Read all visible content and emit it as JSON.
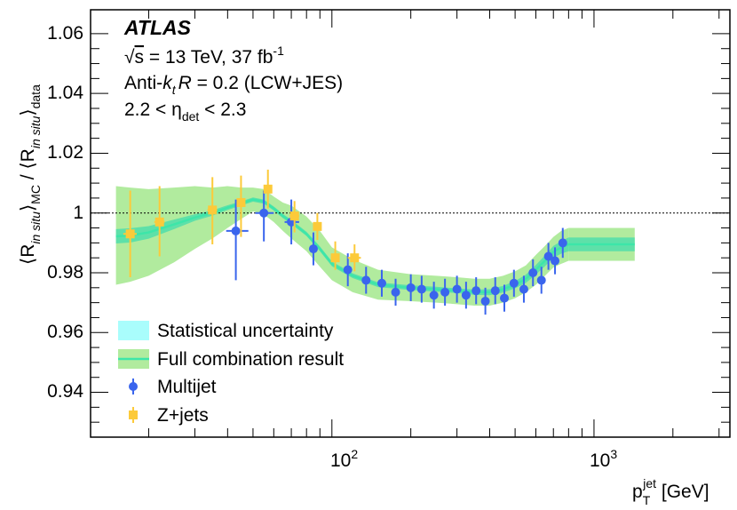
{
  "chart_data": {
    "type": "scatter",
    "x_scale": "log",
    "xlim": [
      12,
      3300
    ],
    "ylim": [
      0.925,
      1.068
    ],
    "reference_line": 1.0,
    "grid": false,
    "legend_position": "bottom-left",
    "header": {
      "experiment": "ATLAS",
      "sqrt_symbol": "√",
      "energy_s": "s",
      "energy_text": " = 13 TeV, 37 fb",
      "energy_sup": "-1",
      "jet_pre": "Anti-",
      "jet_k": "k",
      "jet_t": "t",
      "jet_R": "R",
      "jet_post": " = 0.2 (LCW+JES)",
      "eta_pre": "2.2 < η",
      "eta_sub": "det",
      "eta_post": " < 2.3"
    },
    "ylabel": {
      "bracket_open": "⟨",
      "bracket_close": "⟩",
      "R": "R",
      "insitu": "in situ",
      "mc": "MC",
      "slash": " / ",
      "data": "data"
    },
    "xlabel": {
      "p": "p",
      "T": "T",
      "jet": "jet",
      "unit": " [GeV]"
    },
    "x_ticks_labeled": [
      {
        "value": 100,
        "base": "10",
        "exp": "2"
      },
      {
        "value": 1000,
        "base": "10",
        "exp": "3"
      }
    ],
    "y_ticks": [
      {
        "value": 0.94,
        "label": "0.94"
      },
      {
        "value": 0.96,
        "label": "0.96"
      },
      {
        "value": 0.98,
        "label": "0.98"
      },
      {
        "value": 1.0,
        "label": "1"
      },
      {
        "value": 1.02,
        "label": "1.02"
      },
      {
        "value": 1.04,
        "label": "1.04"
      },
      {
        "value": 1.06,
        "label": "1.06"
      }
    ],
    "legend": [
      {
        "label": "Statistical uncertainty",
        "kind": "stat-box"
      },
      {
        "label": "Full combination result",
        "kind": "full-band"
      },
      {
        "label": "Multijet",
        "kind": "multijet"
      },
      {
        "label": "Z+jets",
        "kind": "zjets"
      }
    ],
    "colors": {
      "full_band": "#b1eb9e",
      "stat_band": "#5ee0a9",
      "central_line": "#3de6a9",
      "legend_stat_box": "#a9fdfc",
      "multijet": "#3a65ed",
      "zjets": "#fcca3a",
      "reference_line": "#000000"
    },
    "combination": {
      "x": [
        15,
        17,
        20,
        25,
        30,
        35,
        40,
        45,
        50,
        55,
        60,
        65,
        70,
        80,
        90,
        100,
        120,
        150,
        200,
        250,
        300,
        350,
        400,
        450,
        500,
        550,
        600,
        650,
        700,
        750,
        800
      ],
      "central": [
        0.9922,
        0.9925,
        0.9935,
        0.9962,
        0.9985,
        1.0,
        1.0018,
        1.0032,
        1.0045,
        1.0038,
        1.0015,
        0.999,
        0.997,
        0.993,
        0.988,
        0.983,
        0.979,
        0.976,
        0.975,
        0.9745,
        0.974,
        0.9735,
        0.9735,
        0.9745,
        0.976,
        0.978,
        0.981,
        0.984,
        0.987,
        0.9885,
        0.9895
      ],
      "stat_lo": [
        0.9898,
        0.9901,
        0.9914,
        0.9946,
        0.9974,
        0.9991,
        1.001,
        1.0025,
        1.0038,
        1.0031,
        1.0008,
        0.9983,
        0.9963,
        0.9923,
        0.9872,
        0.9822,
        0.9782,
        0.9752,
        0.9742,
        0.9737,
        0.9732,
        0.9726,
        0.9725,
        0.9734,
        0.9748,
        0.9766,
        0.9794,
        0.9822,
        0.985,
        0.9864,
        0.9872
      ],
      "stat_hi": [
        0.9946,
        0.9949,
        0.9956,
        0.9978,
        0.9996,
        1.0009,
        1.0026,
        1.0039,
        1.0052,
        1.0045,
        1.0022,
        0.9997,
        0.9977,
        0.9937,
        0.9888,
        0.9838,
        0.9798,
        0.9768,
        0.9758,
        0.9753,
        0.9748,
        0.9744,
        0.9745,
        0.9756,
        0.9772,
        0.9794,
        0.9826,
        0.9858,
        0.989,
        0.9906,
        0.9918
      ],
      "full_lo": [
        0.976,
        0.977,
        0.979,
        0.9835,
        0.988,
        0.9915,
        0.995,
        0.998,
        1.0005,
        0.9995,
        0.997,
        0.994,
        0.9915,
        0.9872,
        0.982,
        0.9775,
        0.9735,
        0.971,
        0.9705,
        0.97,
        0.9695,
        0.969,
        0.969,
        0.97,
        0.9715,
        0.9735,
        0.976,
        0.979,
        0.9818,
        0.983,
        0.984
      ],
      "full_hi": [
        1.009,
        1.0085,
        1.008,
        1.0085,
        1.009,
        1.0085,
        1.009,
        1.0085,
        1.0085,
        1.008,
        1.0055,
        1.0035,
        1.0025,
        0.9988,
        0.994,
        0.9885,
        0.9845,
        0.981,
        0.9795,
        0.979,
        0.9785,
        0.978,
        0.978,
        0.979,
        0.9805,
        0.9825,
        0.986,
        0.989,
        0.992,
        0.994,
        0.995
      ]
    },
    "combination_extension": {
      "x_start": 800,
      "x_end": 1430,
      "central": 0.9895,
      "stat_lo": 0.9872,
      "stat_hi": 0.9918,
      "full_lo": 0.984,
      "full_hi": 0.995
    },
    "multijet": [
      {
        "x": 43,
        "y": 0.994,
        "ylo": 0.9775,
        "yhi": 1.0045,
        "xlo": 39.5,
        "xhi": 48
      },
      {
        "x": 55,
        "y": 1.0,
        "ylo": 0.9905,
        "yhi": 1.0075,
        "xlo": 51,
        "xhi": 60
      },
      {
        "x": 70,
        "y": 0.997,
        "ylo": 0.9895,
        "yhi": 1.0045,
        "xlo": 66,
        "xhi": 75
      },
      {
        "x": 85,
        "y": 0.988,
        "ylo": 0.9825,
        "yhi": 0.9935,
        "xlo": 82,
        "xhi": 88
      },
      {
        "x": 115,
        "y": 0.981,
        "ylo": 0.9755,
        "yhi": 0.9865,
        "xlo": 112,
        "xhi": 119
      },
      {
        "x": 135,
        "y": 0.9775,
        "ylo": 0.973,
        "yhi": 0.982,
        "xlo": 132,
        "xhi": 138
      },
      {
        "x": 155,
        "y": 0.9765,
        "ylo": 0.972,
        "yhi": 0.981,
        "xlo": 152,
        "xhi": 159
      },
      {
        "x": 175,
        "y": 0.9735,
        "ylo": 0.969,
        "yhi": 0.978,
        "xlo": 172,
        "xhi": 178
      },
      {
        "x": 200,
        "y": 0.975,
        "ylo": 0.9705,
        "yhi": 0.9795,
        "xlo": 196,
        "xhi": 204
      },
      {
        "x": 220,
        "y": 0.9745,
        "ylo": 0.97,
        "yhi": 0.979,
        "xlo": 216,
        "xhi": 224
      },
      {
        "x": 245,
        "y": 0.9725,
        "ylo": 0.968,
        "yhi": 0.977,
        "xlo": 240,
        "xhi": 250
      },
      {
        "x": 270,
        "y": 0.9735,
        "ylo": 0.969,
        "yhi": 0.978,
        "xlo": 265,
        "xhi": 275
      },
      {
        "x": 300,
        "y": 0.9745,
        "ylo": 0.97,
        "yhi": 0.979,
        "xlo": 294,
        "xhi": 306
      },
      {
        "x": 325,
        "y": 0.9725,
        "ylo": 0.968,
        "yhi": 0.977,
        "xlo": 318,
        "xhi": 332
      },
      {
        "x": 355,
        "y": 0.974,
        "ylo": 0.9695,
        "yhi": 0.9785,
        "xlo": 348,
        "xhi": 362
      },
      {
        "x": 385,
        "y": 0.9705,
        "ylo": 0.966,
        "yhi": 0.975,
        "xlo": 377,
        "xhi": 393
      },
      {
        "x": 420,
        "y": 0.974,
        "ylo": 0.9695,
        "yhi": 0.9785,
        "xlo": 411,
        "xhi": 429
      },
      {
        "x": 455,
        "y": 0.9715,
        "ylo": 0.967,
        "yhi": 0.976,
        "xlo": 446,
        "xhi": 464
      },
      {
        "x": 495,
        "y": 0.9765,
        "ylo": 0.972,
        "yhi": 0.981,
        "xlo": 485,
        "xhi": 505
      },
      {
        "x": 540,
        "y": 0.9745,
        "ylo": 0.97,
        "yhi": 0.979,
        "xlo": 529,
        "xhi": 551
      },
      {
        "x": 585,
        "y": 0.98,
        "ylo": 0.9755,
        "yhi": 0.9845,
        "xlo": 573,
        "xhi": 597
      },
      {
        "x": 630,
        "y": 0.9775,
        "ylo": 0.973,
        "yhi": 0.982,
        "xlo": 617,
        "xhi": 643
      },
      {
        "x": 670,
        "y": 0.9855,
        "ylo": 0.981,
        "yhi": 0.99,
        "xlo": 656,
        "xhi": 684
      },
      {
        "x": 710,
        "y": 0.984,
        "ylo": 0.9795,
        "yhi": 0.9885,
        "xlo": 695,
        "xhi": 725
      },
      {
        "x": 760,
        "y": 0.99,
        "ylo": 0.985,
        "yhi": 0.995,
        "xlo": 745,
        "xhi": 775
      }
    ],
    "zjets": [
      {
        "x": 17,
        "y": 0.993,
        "ylo": 0.9785,
        "yhi": 1.0075,
        "xlo": 16,
        "xhi": 18
      },
      {
        "x": 22,
        "y": 0.997,
        "ylo": 0.9855,
        "yhi": 1.009,
        "xlo": 21,
        "xhi": 23
      },
      {
        "x": 35,
        "y": 1.001,
        "ylo": 0.9895,
        "yhi": 1.012,
        "xlo": 33.5,
        "xhi": 36.5
      },
      {
        "x": 45,
        "y": 1.0035,
        "ylo": 0.992,
        "yhi": 1.0125,
        "xlo": 43.5,
        "xhi": 46.5
      },
      {
        "x": 57,
        "y": 1.008,
        "ylo": 1.0015,
        "yhi": 1.0145,
        "xlo": 55,
        "xhi": 59
      },
      {
        "x": 72,
        "y": 0.999,
        "ylo": 0.9935,
        "yhi": 1.004,
        "xlo": 69,
        "xhi": 75
      },
      {
        "x": 88,
        "y": 0.9955,
        "ylo": 0.991,
        "yhi": 1.0,
        "xlo": 85,
        "xhi": 91
      },
      {
        "x": 103,
        "y": 0.985,
        "ylo": 0.981,
        "yhi": 0.9905,
        "xlo": 99,
        "xhi": 107
      },
      {
        "x": 122,
        "y": 0.985,
        "ylo": 0.9805,
        "yhi": 0.9895,
        "xlo": 115,
        "xhi": 129
      }
    ]
  }
}
